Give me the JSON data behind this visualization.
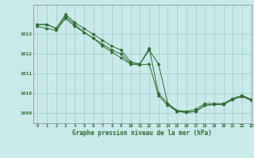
{
  "title": "Graphe pression niveau de la mer (hPa)",
  "bg_color": "#c8eaea",
  "grid_color": "#a0c8c8",
  "line_color": "#2d6a2d",
  "xlim": [
    -0.5,
    23
  ],
  "ylim": [
    1008.5,
    1014.5
  ],
  "yticks": [
    1009,
    1010,
    1011,
    1012,
    1013
  ],
  "xticks": [
    0,
    1,
    2,
    3,
    4,
    5,
    6,
    7,
    8,
    9,
    10,
    11,
    12,
    13,
    14,
    15,
    16,
    17,
    18,
    19,
    20,
    21,
    22,
    23
  ],
  "series1": [
    1013.5,
    1013.5,
    1013.3,
    1014.0,
    1013.6,
    1013.3,
    1013.0,
    1012.7,
    1012.4,
    1012.2,
    1011.6,
    1011.5,
    1012.3,
    1010.0,
    1009.5,
    1009.15,
    1009.1,
    1009.2,
    1009.5,
    1009.5,
    1009.5,
    1009.75,
    1009.9,
    1009.7
  ],
  "series2": [
    1013.4,
    1013.3,
    1013.2,
    1013.8,
    1013.4,
    1013.1,
    1012.8,
    1012.5,
    1012.2,
    1012.0,
    1011.5,
    1011.45,
    1011.5,
    1009.9,
    1009.4,
    1009.1,
    1009.05,
    1009.1,
    1009.4,
    1009.45,
    1009.45,
    1009.7,
    1009.85,
    1009.65
  ],
  "series3": [
    1013.5,
    1013.5,
    1013.3,
    1013.9,
    1013.5,
    1013.1,
    1012.8,
    1012.4,
    1012.1,
    1011.8,
    1011.5,
    1011.5,
    1012.2,
    1011.5,
    1009.5,
    1009.1,
    1009.05,
    1009.1,
    1009.4,
    1009.45,
    1009.45,
    1009.75,
    1009.9,
    1009.7
  ]
}
